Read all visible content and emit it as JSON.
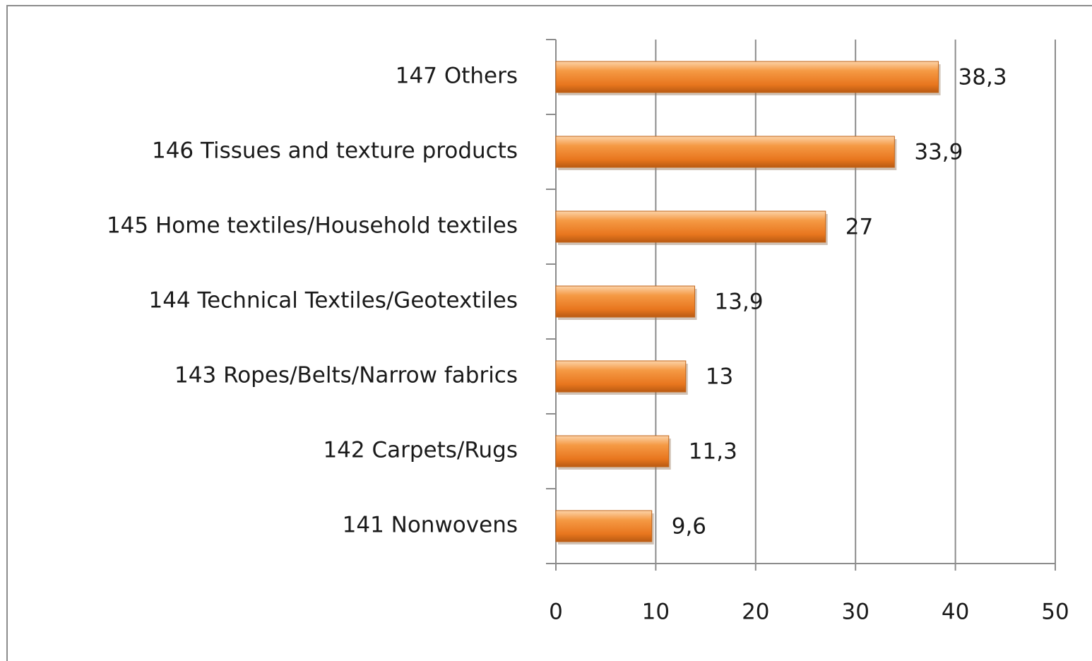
{
  "chart_data": {
    "type": "barh",
    "categories": [
      "147 Others",
      "146 Tissues and texture products",
      "145 Home textiles/Household textiles",
      "144 Technical Textiles/Geotextiles",
      "143 Ropes/Belts/Narrow fabrics",
      "142 Carpets/Rugs",
      "141 Nonwovens"
    ],
    "values": [
      38.3,
      33.9,
      27,
      13.9,
      13,
      11.3,
      9.6
    ],
    "value_labels": [
      "38,3",
      "33,9",
      "27",
      "13,9",
      "13",
      "11,3",
      "9,6"
    ],
    "color": "#f08a2a",
    "xlim": [
      0,
      50
    ],
    "xticks": [
      0,
      10,
      20,
      30,
      40,
      50
    ],
    "grid": true
  }
}
